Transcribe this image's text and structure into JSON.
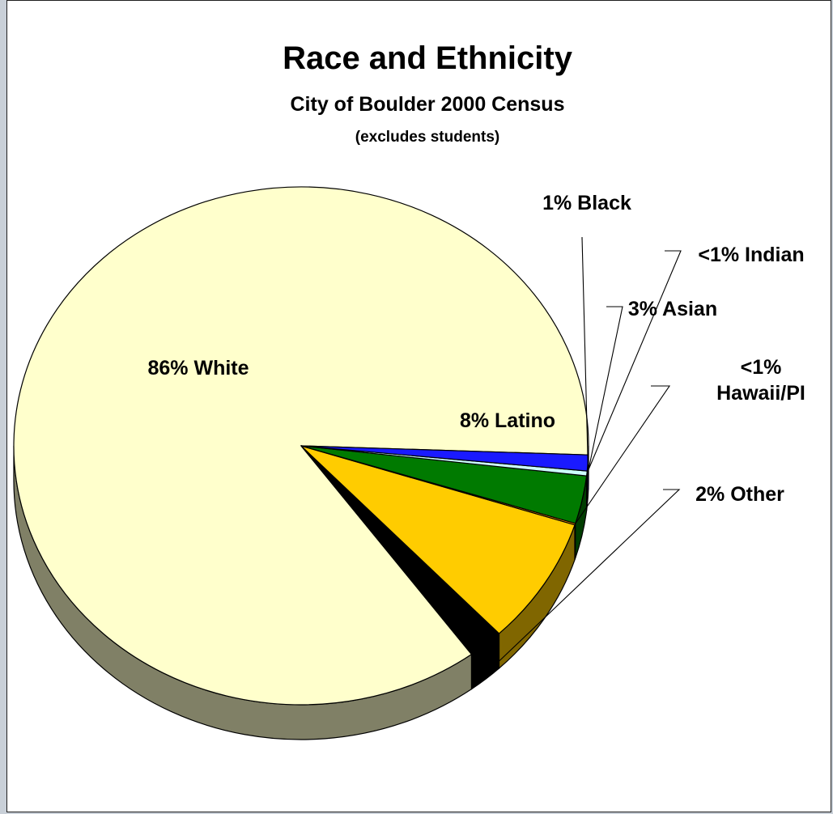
{
  "chart_data": {
    "type": "pie",
    "style": "3d",
    "title": "Race and Ethnicity",
    "subtitle": "City of Boulder 2000 Census",
    "note": "(excludes students)",
    "slices": [
      {
        "label": "86% White",
        "value": 86,
        "color": "#ffffcc",
        "side_color": "#808066",
        "label_inside": true
      },
      {
        "label": "2% Other",
        "value": 2,
        "color": "#000000",
        "side_color": "#000000",
        "label_inside": false
      },
      {
        "label": "8% Latino",
        "value": 8,
        "color": "#ffcc00",
        "side_color": "#806600",
        "label_inside": true
      },
      {
        "label": "<1% Hawaii/PI",
        "label_lines": [
          "<1%",
          "Hawaii/PI"
        ],
        "value": 0.1,
        "color": "#ff9900",
        "side_color": "#804d00",
        "label_inside": false
      },
      {
        "label": "3% Asian",
        "value": 3,
        "color": "#007a00",
        "side_color": "#003d00",
        "label_inside": false
      },
      {
        "label": "<1% Indian",
        "value": 0.3,
        "color": "#ccffff",
        "side_color": "#668080",
        "label_inside": false
      },
      {
        "label": "1% Black",
        "value": 1,
        "color": "#1a1aff",
        "side_color": "#0d0d80",
        "label_inside": false
      }
    ],
    "legend": "none"
  }
}
